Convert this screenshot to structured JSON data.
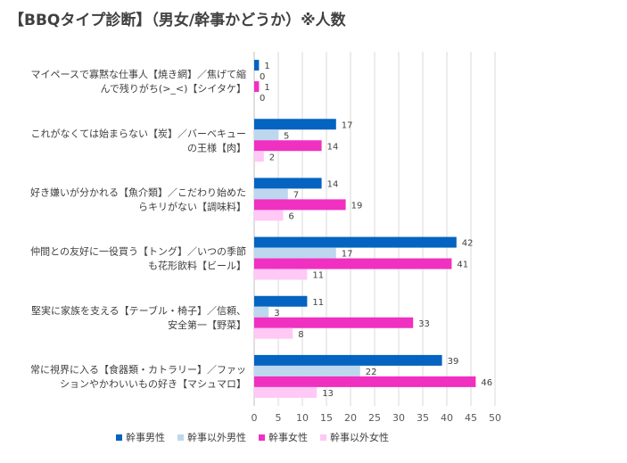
{
  "chart_data": {
    "type": "bar",
    "orientation": "horizontal",
    "title": "【BBQタイプ診断】（男女/幹事かどうか）※人数",
    "categories": [
      [
        "マイペースで寡黙な仕事人【焼き網】／焦げて縮",
        "んで残りがち(>_<)【シイタケ】"
      ],
      [
        "これがなくては始まらない【炭】／バーベキュー",
        "の王様【肉】"
      ],
      [
        "好き嫌いが分かれる【魚介類】／こだわり始めた",
        "らキリがない【調味料】"
      ],
      [
        "仲間との友好に一役買う【トング】／いつの季節",
        "も花形飲料【ビール】"
      ],
      [
        "堅実に家族を支える【テーブル・椅子】／信頼、",
        "安全第一【野菜】"
      ],
      [
        "常に視界に入る【食器類・カトラリー】／ファッ",
        "ションやかわいいもの好き【マシュマロ】"
      ]
    ],
    "series": [
      {
        "name": "幹事男性",
        "color": "#0563c1",
        "values": [
          1,
          17,
          14,
          42,
          11,
          39
        ]
      },
      {
        "name": "幹事以外男性",
        "color": "#bdd7ee",
        "values": [
          0,
          5,
          7,
          17,
          3,
          22
        ]
      },
      {
        "name": "幹事女性",
        "color": "#f030c0",
        "values": [
          1,
          14,
          19,
          41,
          33,
          46
        ]
      },
      {
        "name": "幹事以外女性",
        "color": "#ffc8f5",
        "values": [
          0,
          2,
          6,
          11,
          8,
          13
        ]
      }
    ],
    "xlim": [
      0,
      50
    ],
    "xticks": [
      0,
      5,
      10,
      15,
      20,
      25,
      30,
      35,
      40,
      45,
      50
    ],
    "grid": true,
    "legend_position": "bottom"
  }
}
